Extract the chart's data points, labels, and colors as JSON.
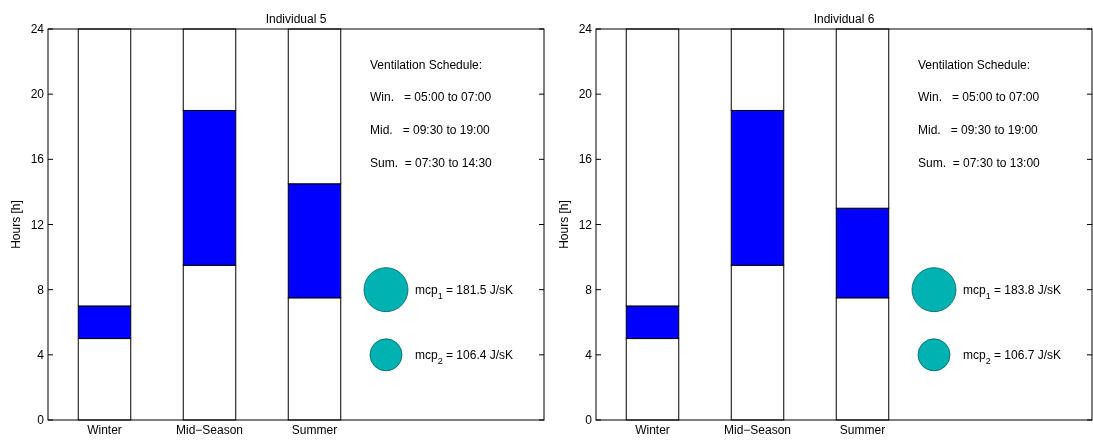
{
  "chart_data": [
    {
      "type": "bar",
      "title": "Individual 5",
      "ylabel": "Hours [h]",
      "categories": [
        "Winter",
        "Mid−Season",
        "Summer"
      ],
      "stacked": true,
      "series": [
        {
          "color": "#ffffff",
          "values": [
            5,
            9.5,
            7.5
          ]
        },
        {
          "color": "#0000ff",
          "values": [
            2,
            9.5,
            7
          ]
        },
        {
          "color": "#ffffff",
          "values": [
            17,
            5,
            9.5
          ]
        }
      ],
      "ylim": [
        0,
        24
      ],
      "yticks": [
        0,
        4,
        8,
        12,
        16,
        20,
        24
      ],
      "annotations": [
        "Ventilation Schedule:",
        "Win.   = 05:00 to 07:00",
        "Mid.   = 09:30 to 19:00",
        "Sum.  = 07:30 to 14:30",
        "mcp$_{1}$ = 181.5 J/sK",
        "mcp$_{2}$ = 106.4 J/sK"
      ]
    },
    {
      "type": "bar",
      "title": "Individual 6",
      "ylabel": "Hours [h]",
      "categories": [
        "Winter",
        "Mid−Season",
        "Summer"
      ],
      "stacked": true,
      "series": [
        {
          "color": "#ffffff",
          "values": [
            5,
            9.5,
            7.5
          ]
        },
        {
          "color": "#0000ff",
          "values": [
            2,
            9.5,
            5.5
          ]
        },
        {
          "color": "#ffffff",
          "values": [
            17,
            5,
            11
          ]
        }
      ],
      "ylim": [
        0,
        24
      ],
      "yticks": [
        0,
        4,
        8,
        12,
        16,
        20,
        24
      ],
      "annotations": [
        "Ventilation Schedule:",
        "Win.   = 05:00 to 07:00",
        "Mid.   = 09:30 to 19:00",
        "Sum.  = 07:30 to 13:00",
        "mcp$_{1}$ = 183.8 J/sK",
        "mcp$_{2}$ = 106.7 J/sK"
      ]
    }
  ]
}
